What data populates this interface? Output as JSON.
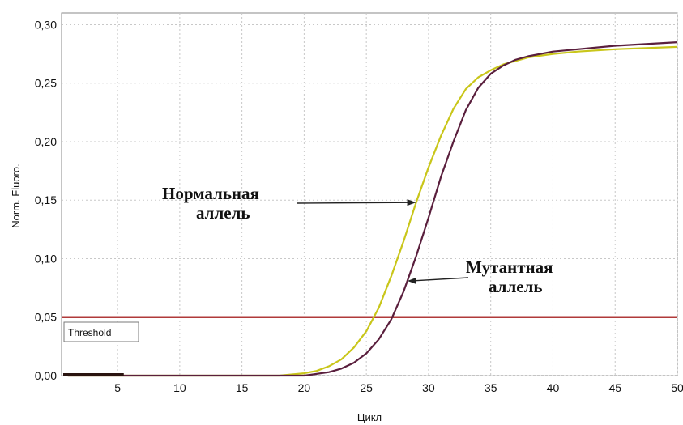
{
  "chart_data": {
    "type": "line",
    "title": "",
    "xlabel": "Цикл",
    "ylabel": "Norm. Fluoro.",
    "xlim": [
      0.5,
      50
    ],
    "ylim": [
      0,
      0.31
    ],
    "x_ticks": [
      5,
      10,
      15,
      20,
      25,
      30,
      35,
      40,
      45,
      50
    ],
    "y_ticks": [
      0,
      0.05,
      0.1,
      0.15,
      0.2,
      0.25,
      0.3
    ],
    "x_tick_labels": [
      "5",
      "10",
      "15",
      "20",
      "25",
      "30",
      "35",
      "40",
      "45",
      "50"
    ],
    "y_tick_labels": [
      "0,00",
      "0,05",
      "0,10",
      "0,15",
      "0,20",
      "0,25",
      "0,30"
    ],
    "grid": true,
    "threshold": {
      "label": "Threshold",
      "value": 0.05,
      "color": "#b03a3a"
    },
    "series": [
      {
        "color": "#c9c61a",
        "x": [
          1,
          5,
          10,
          15,
          18,
          20,
          21,
          22,
          23,
          24,
          25,
          26,
          27,
          28,
          29,
          30,
          31,
          32,
          33,
          34,
          35,
          36,
          37,
          38,
          40,
          42,
          45,
          50
        ],
        "y": [
          0.0,
          0.0,
          0.0,
          0.0,
          0.0,
          0.002,
          0.004,
          0.008,
          0.014,
          0.024,
          0.038,
          0.058,
          0.085,
          0.115,
          0.148,
          0.178,
          0.205,
          0.228,
          0.245,
          0.255,
          0.261,
          0.266,
          0.269,
          0.272,
          0.275,
          0.277,
          0.279,
          0.281
        ]
      },
      {
        "color": "#5a1f3d",
        "x": [
          1,
          5,
          10,
          15,
          18,
          20,
          22,
          23,
          24,
          25,
          26,
          27,
          28,
          29,
          30,
          31,
          32,
          33,
          34,
          35,
          36,
          37,
          38,
          40,
          42,
          45,
          50
        ],
        "y": [
          0.0,
          0.0,
          0.0,
          0.0,
          0.0,
          0.0,
          0.003,
          0.006,
          0.011,
          0.019,
          0.031,
          0.048,
          0.072,
          0.102,
          0.135,
          0.17,
          0.2,
          0.227,
          0.246,
          0.258,
          0.265,
          0.27,
          0.273,
          0.277,
          0.279,
          0.282,
          0.285
        ]
      }
    ],
    "annotations": [
      {
        "lines": [
          "Нормальная",
          "аллель"
        ],
        "target_series": 0,
        "target_x": 29
      },
      {
        "lines": [
          "Мутантная",
          "аллель"
        ],
        "target_series": 1,
        "target_x": 28.3
      }
    ]
  }
}
